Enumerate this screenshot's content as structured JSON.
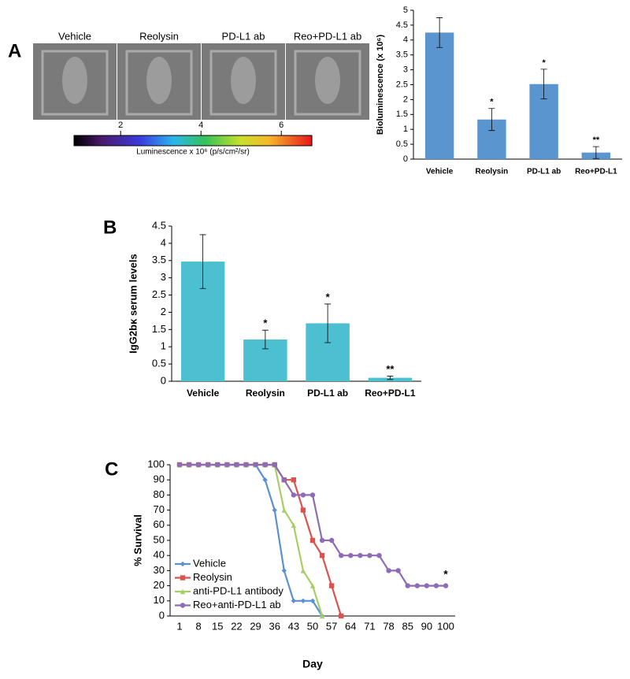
{
  "panel_labels": [
    "A",
    "B",
    "C"
  ],
  "chart_data": [
    {
      "type": "image_strip",
      "images": [
        "Vehicle",
        "Reolysin",
        "PD-L1 ab",
        "Reo+PD-L1 ab"
      ],
      "colorbar_label": "Luminescence x 10⁶ (p/s/cm²/sr)",
      "clim": [
        0.84,
        6.76
      ],
      "cticks": [
        2,
        4,
        6
      ]
    },
    {
      "type": "bar",
      "ylabel": "Bioluminescence (x 10⁶)",
      "categories": [
        "Vehicle",
        "Reolysin",
        "PD-L1 ab",
        "Reo+PD-L1"
      ],
      "values": [
        4.25,
        1.33,
        2.52,
        0.22
      ],
      "errors": [
        0.5,
        0.37,
        0.5,
        0.2
      ],
      "annotations": [
        null,
        "*",
        "*",
        "**"
      ],
      "color": "#5b95cf",
      "ylim": [
        0,
        5
      ],
      "yticks": [
        0,
        0.5,
        1,
        1.5,
        2,
        2.5,
        3,
        3.5,
        4,
        4.5,
        5
      ]
    },
    {
      "type": "bar",
      "ylabel": "IgG2bκ serum levels",
      "categories": [
        "Vehicle",
        "Reolysin",
        "PD-L1 ab",
        "Reo+PD-L1"
      ],
      "values": [
        3.47,
        1.21,
        1.68,
        0.1
      ],
      "errors": [
        0.78,
        0.27,
        0.56,
        0.05
      ],
      "annotations": [
        null,
        "*",
        "*",
        "**"
      ],
      "color": "#4cbfd1",
      "ylim": [
        0,
        4.5
      ],
      "yticks": [
        0,
        0.5,
        1,
        1.5,
        2,
        2.5,
        3,
        3.5,
        4,
        4.5
      ]
    },
    {
      "type": "line",
      "xlabel": "Day",
      "ylabel": "% Survival",
      "categories": [
        "1",
        null,
        "8",
        null,
        "15",
        null,
        "22",
        null,
        "29",
        null,
        "36",
        null,
        "43",
        null,
        "50",
        null,
        "57",
        null,
        "64",
        null,
        "71",
        null,
        "78",
        null,
        "85",
        null,
        "90",
        null,
        "100"
      ],
      "series": [
        {
          "name": "Vehicle",
          "color": "#5b8fd6",
          "marker": "diamond",
          "values": [
            100,
            100,
            100,
            100,
            100,
            100,
            100,
            100,
            100,
            90,
            70,
            30,
            10,
            10,
            10,
            0,
            null,
            null,
            null,
            null,
            null,
            null,
            null,
            null,
            null,
            null,
            null,
            null,
            null
          ]
        },
        {
          "name": "Reolysin",
          "color": "#d9534f",
          "marker": "square",
          "values": [
            100,
            100,
            100,
            100,
            100,
            100,
            100,
            100,
            100,
            100,
            100,
            90,
            90,
            70,
            50,
            40,
            20,
            0,
            null,
            null,
            null,
            null,
            null,
            null,
            null,
            null,
            null,
            null,
            null
          ]
        },
        {
          "name": "anti-PD-L1 antibody",
          "color": "#a6cf63",
          "marker": "triangle",
          "values": [
            100,
            100,
            100,
            100,
            100,
            100,
            100,
            100,
            100,
            100,
            100,
            70,
            60,
            30,
            20,
            0,
            null,
            null,
            null,
            null,
            null,
            null,
            null,
            null,
            null,
            null,
            null,
            null,
            null
          ]
        },
        {
          "name": "Reo+anti-PD-L1 ab",
          "color": "#8e6bb5",
          "marker": "circle",
          "values": [
            100,
            100,
            100,
            100,
            100,
            100,
            100,
            100,
            100,
            100,
            100,
            90,
            80,
            80,
            80,
            50,
            50,
            40,
            40,
            40,
            40,
            40,
            30,
            30,
            20,
            20,
            20,
            20,
            20
          ]
        }
      ],
      "annotation": "*",
      "legend": "lower-left",
      "ylim": [
        0,
        100
      ],
      "yticks": [
        0,
        10,
        20,
        30,
        40,
        50,
        60,
        70,
        80,
        90,
        100
      ]
    }
  ]
}
